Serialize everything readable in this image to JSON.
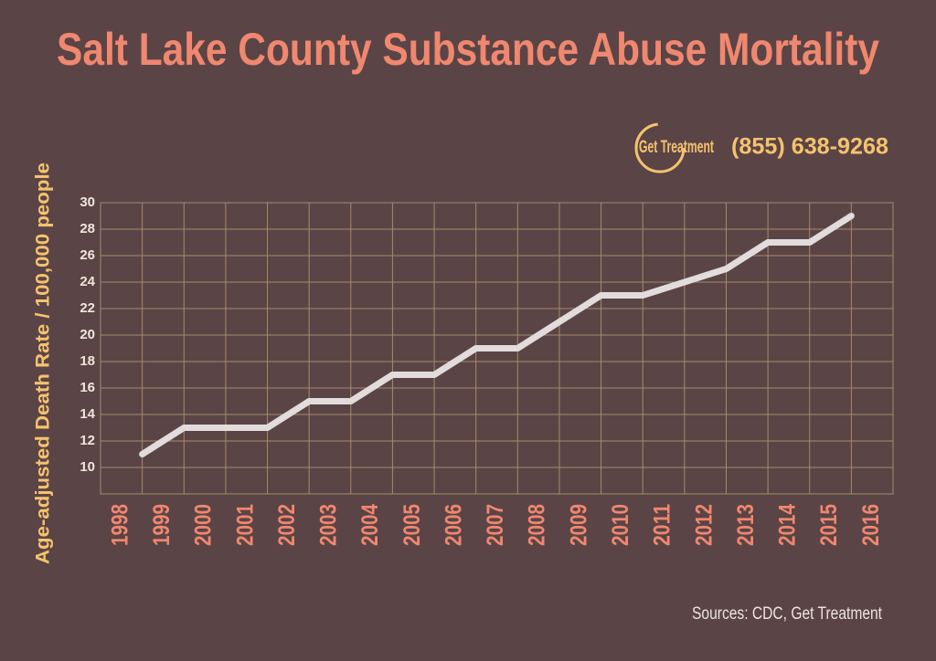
{
  "chart_data": {
    "type": "line",
    "title": "Salt Lake County Substance Abuse Mortality",
    "y_label": "Age-adjusted Death Rate / 100,000 people",
    "source": "Sources: CDC, Get Treatment",
    "logo": "Get Treatment",
    "phone": "(855) 638-9268",
    "categories": [
      "1998",
      "1999",
      "2000",
      "2001",
      "2002",
      "2003",
      "2004",
      "2005",
      "2006",
      "2007",
      "2008",
      "2009",
      "2010",
      "2011",
      "2012",
      "2013",
      "2014",
      "2015",
      "2016"
    ],
    "series": [
      {
        "name": "Death rate",
        "color": "#e2dcdc",
        "values": [
          11,
          13,
          13,
          13,
          15,
          15,
          17,
          17,
          19,
          19,
          21,
          23,
          23,
          24,
          25,
          27,
          27,
          29,
          null
        ]
      }
    ],
    "ylim": [
      8,
      30
    ],
    "yticks": [
      10,
      12,
      14,
      16,
      18,
      20,
      22,
      24,
      26,
      28,
      30
    ],
    "grid": true
  }
}
